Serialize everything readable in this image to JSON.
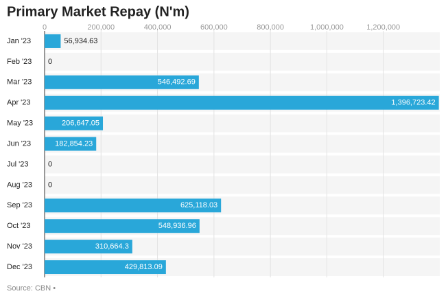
{
  "chart_data": {
    "type": "hbar",
    "title": "Primary Market Repay (N'm)",
    "categories": [
      "Jan '23",
      "Feb '23",
      "Mar '23",
      "Apr '23",
      "May '23",
      "Jun '23",
      "Jul '23",
      "Aug '23",
      "Sep '23",
      "Oct '23",
      "Nov '23",
      "Dec '23"
    ],
    "values": [
      56934.63,
      0,
      546492.69,
      1396723.42,
      206647.05,
      182854.23,
      0,
      0,
      625118.03,
      548936.96,
      310664.3,
      429813.09
    ],
    "value_labels": [
      "56,934.63",
      "0",
      "546,492.69",
      "1,396,723.42",
      "206,647.05",
      "182,854.23",
      "0",
      "0",
      "625,118.03",
      "548,936.96",
      "310,664.3",
      "429,813.09"
    ],
    "color": "#29a7d9",
    "xlim": [
      0,
      1400000
    ],
    "xticks": [
      0,
      {
        "value": 200000,
        "label": "200,000"
      },
      {
        "value": 400000,
        "label": "400,000"
      },
      {
        "value": 600000,
        "label": "600,000"
      },
      {
        "value": 800000,
        "label": "800,000"
      },
      {
        "value": 1000000,
        "label": "1,000,000"
      },
      {
        "value": 1200000,
        "label": "1,200,000"
      }
    ],
    "grid": true,
    "source": "Source: CBN •"
  }
}
